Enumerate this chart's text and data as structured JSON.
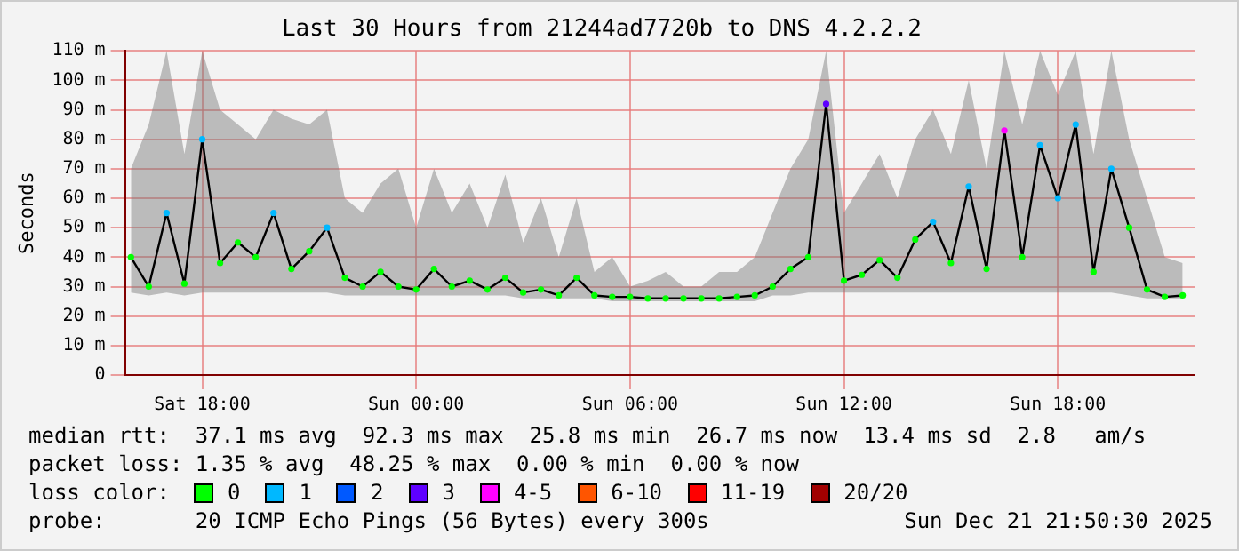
{
  "chart_data": {
    "type": "line",
    "title": "Last 30 Hours from 21244ad7720b to DNS 4.2.2.2",
    "ylabel": "Seconds",
    "legend_title": "loss color:",
    "legend": "bottom",
    "grid": true,
    "marker": "circle",
    "xlim": [
      "2025-12-20T15:50",
      "2025-12-21T21:50"
    ],
    "xticks": [
      {
        "value": "2025-12-20T18:00",
        "label": "Sat 18:00"
      },
      {
        "value": "2025-12-21T00:00",
        "label": "Sun 00:00"
      },
      {
        "value": "2025-12-21T06:00",
        "label": "Sun 06:00"
      },
      {
        "value": "2025-12-21T12:00",
        "label": "Sun 12:00"
      },
      {
        "value": "2025-12-21T18:00",
        "label": "Sun 18:00"
      }
    ],
    "ylim": [
      0,
      110
    ],
    "yticks": [
      0,
      {
        "value": 10,
        "label": "10 m"
      },
      {
        "value": 20,
        "label": "20 m"
      },
      {
        "value": 30,
        "label": "30 m"
      },
      {
        "value": 40,
        "label": "40 m"
      },
      {
        "value": 50,
        "label": "50 m"
      },
      {
        "value": 60,
        "label": "60 m"
      },
      {
        "value": 70,
        "label": "70 m"
      },
      {
        "value": 80,
        "label": "80 m"
      },
      {
        "value": 90,
        "label": "90 m"
      },
      {
        "value": 100,
        "label": "100 m"
      },
      {
        "value": 110,
        "label": "110 m"
      }
    ],
    "x": [
      "2025-12-20T16:00",
      "2025-12-20T16:30",
      "2025-12-20T17:00",
      "2025-12-20T17:30",
      "2025-12-20T18:00",
      "2025-12-20T18:30",
      "2025-12-20T19:00",
      "2025-12-20T19:30",
      "2025-12-20T20:00",
      "2025-12-20T20:30",
      "2025-12-20T21:00",
      "2025-12-20T21:30",
      "2025-12-20T22:00",
      "2025-12-20T22:30",
      "2025-12-20T23:00",
      "2025-12-20T23:30",
      "2025-12-21T00:00",
      "2025-12-21T00:30",
      "2025-12-21T01:00",
      "2025-12-21T01:30",
      "2025-12-21T02:00",
      "2025-12-21T02:30",
      "2025-12-21T03:00",
      "2025-12-21T03:30",
      "2025-12-21T04:00",
      "2025-12-21T04:30",
      "2025-12-21T05:00",
      "2025-12-21T05:30",
      "2025-12-21T06:00",
      "2025-12-21T06:30",
      "2025-12-21T07:00",
      "2025-12-21T07:30",
      "2025-12-21T08:00",
      "2025-12-21T08:30",
      "2025-12-21T09:00",
      "2025-12-21T09:30",
      "2025-12-21T10:00",
      "2025-12-21T10:30",
      "2025-12-21T11:00",
      "2025-12-21T11:30",
      "2025-12-21T12:00",
      "2025-12-21T12:30",
      "2025-12-21T13:00",
      "2025-12-21T13:30",
      "2025-12-21T14:00",
      "2025-12-21T14:30",
      "2025-12-21T15:00",
      "2025-12-21T15:30",
      "2025-12-21T16:00",
      "2025-12-21T16:30",
      "2025-12-21T17:00",
      "2025-12-21T17:30",
      "2025-12-21T18:00",
      "2025-12-21T18:30",
      "2025-12-21T19:00",
      "2025-12-21T19:30",
      "2025-12-21T20:00",
      "2025-12-21T20:30",
      "2025-12-21T21:00",
      "2025-12-21T21:30"
    ],
    "series": [
      {
        "color": "#000000",
        "values": [
          40,
          30,
          55,
          31,
          80,
          38,
          45,
          40,
          55,
          36,
          42,
          50,
          33,
          30,
          35,
          30,
          29,
          36,
          30,
          32,
          29,
          33,
          28,
          29,
          27,
          33,
          27,
          26.5,
          26.5,
          26,
          26,
          26,
          26,
          26,
          26.5,
          27,
          30,
          36,
          40,
          92,
          32,
          34,
          39,
          33,
          46,
          52,
          38,
          64,
          36,
          83,
          40,
          78,
          60,
          85,
          35,
          70,
          50,
          29,
          26.5,
          27
        ],
        "lower": [
          28,
          27,
          28,
          27,
          28,
          28,
          28,
          28,
          28,
          28,
          28,
          28,
          27,
          27,
          27,
          27,
          27,
          27,
          27,
          27,
          27,
          27,
          26,
          26,
          26,
          26,
          26,
          25,
          25,
          25,
          25,
          25,
          25,
          25,
          25,
          25,
          27,
          27,
          28,
          28,
          28,
          28,
          28,
          28,
          28,
          28,
          28,
          28,
          28,
          28,
          28,
          28,
          28,
          28,
          28,
          28,
          27,
          26,
          26,
          26
        ],
        "upper": [
          70,
          85,
          110,
          75,
          110,
          90,
          85,
          80,
          90,
          87,
          85,
          90,
          60,
          55,
          65,
          70,
          50,
          70,
          55,
          65,
          50,
          68,
          45,
          60,
          40,
          60,
          35,
          40,
          30,
          32,
          35,
          30,
          30,
          35,
          35,
          40,
          55,
          70,
          80,
          110,
          55,
          65,
          75,
          60,
          80,
          90,
          75,
          100,
          70,
          110,
          85,
          110,
          95,
          110,
          75,
          110,
          80,
          60,
          40,
          38
        ],
        "colors": [
          "#00ff00",
          "#00ff00",
          "#00b8ff",
          "#00ff00",
          "#00b8ff",
          "#00ff00",
          "#00ff00",
          "#00ff00",
          "#00b8ff",
          "#00ff00",
          "#00ff00",
          "#00b8ff",
          "#00ff00",
          "#00ff00",
          "#00ff00",
          "#00ff00",
          "#00ff00",
          "#00ff00",
          "#00ff00",
          "#00ff00",
          "#00ff00",
          "#00ff00",
          "#00ff00",
          "#00ff00",
          "#00ff00",
          "#00ff00",
          "#00ff00",
          "#00ff00",
          "#00ff00",
          "#00ff00",
          "#00ff00",
          "#00ff00",
          "#00ff00",
          "#00ff00",
          "#00ff00",
          "#00ff00",
          "#00ff00",
          "#00ff00",
          "#00ff00",
          "#5e00ff",
          "#00ff00",
          "#00ff00",
          "#00ff00",
          "#00ff00",
          "#00ff00",
          "#00b8ff",
          "#00ff00",
          "#00b8ff",
          "#00ff00",
          "#ff00ff",
          "#00ff00",
          "#00b8ff",
          "#00b8ff",
          "#00b8ff",
          "#00ff00",
          "#00b8ff",
          "#00ff00",
          "#00ff00",
          "#00ff00",
          "#00ff00"
        ]
      },
      {
        "name": "0",
        "color": "#00ff00",
        "values": [
          null,
          null,
          null,
          null,
          null,
          null,
          null,
          null,
          null,
          null,
          null,
          null,
          null,
          null,
          null,
          null,
          null,
          null,
          null,
          null,
          null,
          null,
          null,
          null,
          null,
          null,
          null,
          null,
          null,
          null,
          null,
          null,
          null,
          null,
          null,
          null,
          null,
          null,
          null,
          null,
          null,
          null,
          null,
          null,
          null,
          null,
          null,
          null,
          null,
          null,
          null,
          null,
          null,
          null,
          null,
          null,
          null,
          null,
          null,
          null
        ]
      },
      {
        "name": "1",
        "color": "#00b8ff",
        "values": [
          null,
          null,
          null,
          null,
          null,
          null,
          null,
          null,
          null,
          null,
          null,
          null,
          null,
          null,
          null,
          null,
          null,
          null,
          null,
          null,
          null,
          null,
          null,
          null,
          null,
          null,
          null,
          null,
          null,
          null,
          null,
          null,
          null,
          null,
          null,
          null,
          null,
          null,
          null,
          null,
          null,
          null,
          null,
          null,
          null,
          null,
          null,
          null,
          null,
          null,
          null,
          null,
          null,
          null,
          null,
          null,
          null,
          null,
          null,
          null
        ]
      },
      {
        "name": "2",
        "color": "#0059ff",
        "values": [
          null,
          null,
          null,
          null,
          null,
          null,
          null,
          null,
          null,
          null,
          null,
          null,
          null,
          null,
          null,
          null,
          null,
          null,
          null,
          null,
          null,
          null,
          null,
          null,
          null,
          null,
          null,
          null,
          null,
          null,
          null,
          null,
          null,
          null,
          null,
          null,
          null,
          null,
          null,
          null,
          null,
          null,
          null,
          null,
          null,
          null,
          null,
          null,
          null,
          null,
          null,
          null,
          null,
          null,
          null,
          null,
          null,
          null,
          null,
          null
        ]
      },
      {
        "name": "3",
        "color": "#5e00ff",
        "values": [
          null,
          null,
          null,
          null,
          null,
          null,
          null,
          null,
          null,
          null,
          null,
          null,
          null,
          null,
          null,
          null,
          null,
          null,
          null,
          null,
          null,
          null,
          null,
          null,
          null,
          null,
          null,
          null,
          null,
          null,
          null,
          null,
          null,
          null,
          null,
          null,
          null,
          null,
          null,
          null,
          null,
          null,
          null,
          null,
          null,
          null,
          null,
          null,
          null,
          null,
          null,
          null,
          null,
          null,
          null,
          null,
          null,
          null,
          null,
          null
        ]
      },
      {
        "name": "4-5",
        "color": "#ff00ff",
        "values": [
          null,
          null,
          null,
          null,
          null,
          null,
          null,
          null,
          null,
          null,
          null,
          null,
          null,
          null,
          null,
          null,
          null,
          null,
          null,
          null,
          null,
          null,
          null,
          null,
          null,
          null,
          null,
          null,
          null,
          null,
          null,
          null,
          null,
          null,
          null,
          null,
          null,
          null,
          null,
          null,
          null,
          null,
          null,
          null,
          null,
          null,
          null,
          null,
          null,
          null,
          null,
          null,
          null,
          null,
          null,
          null,
          null,
          null,
          null,
          null
        ]
      },
      {
        "name": "6-10",
        "color": "#ff5500",
        "values": [
          null,
          null,
          null,
          null,
          null,
          null,
          null,
          null,
          null,
          null,
          null,
          null,
          null,
          null,
          null,
          null,
          null,
          null,
          null,
          null,
          null,
          null,
          null,
          null,
          null,
          null,
          null,
          null,
          null,
          null,
          null,
          null,
          null,
          null,
          null,
          null,
          null,
          null,
          null,
          null,
          null,
          null,
          null,
          null,
          null,
          null,
          null,
          null,
          null,
          null,
          null,
          null,
          null,
          null,
          null,
          null,
          null,
          null,
          null,
          null
        ]
      },
      {
        "name": "11-19",
        "color": "#ff0000",
        "values": [
          null,
          null,
          null,
          null,
          null,
          null,
          null,
          null,
          null,
          null,
          null,
          null,
          null,
          null,
          null,
          null,
          null,
          null,
          null,
          null,
          null,
          null,
          null,
          null,
          null,
          null,
          null,
          null,
          null,
          null,
          null,
          null,
          null,
          null,
          null,
          null,
          null,
          null,
          null,
          null,
          null,
          null,
          null,
          null,
          null,
          null,
          null,
          null,
          null,
          null,
          null,
          null,
          null,
          null,
          null,
          null,
          null,
          null,
          null,
          null
        ]
      },
      {
        "name": "20/20",
        "color": "#a10000",
        "values": [
          null,
          null,
          null,
          null,
          null,
          null,
          null,
          null,
          null,
          null,
          null,
          null,
          null,
          null,
          null,
          null,
          null,
          null,
          null,
          null,
          null,
          null,
          null,
          null,
          null,
          null,
          null,
          null,
          null,
          null,
          null,
          null,
          null,
          null,
          null,
          null,
          null,
          null,
          null,
          null,
          null,
          null,
          null,
          null,
          null,
          null,
          null,
          null,
          null,
          null,
          null,
          null,
          null,
          null,
          null,
          null,
          null,
          null,
          null,
          null
        ]
      }
    ],
    "annotations": [
      "median rtt:  37.1 ms avg  92.3 ms max  25.8 ms min  26.7 ms now  13.4 ms sd  2.8   am/s",
      "packet loss: 1.35 % avg  48.25 % max  0.00 % min  0.00 % now",
      "probe:       20 ICMP Echo Pings (56 Bytes) every 300s",
      "Sun Dec 21 21:50:30 2025"
    ]
  }
}
